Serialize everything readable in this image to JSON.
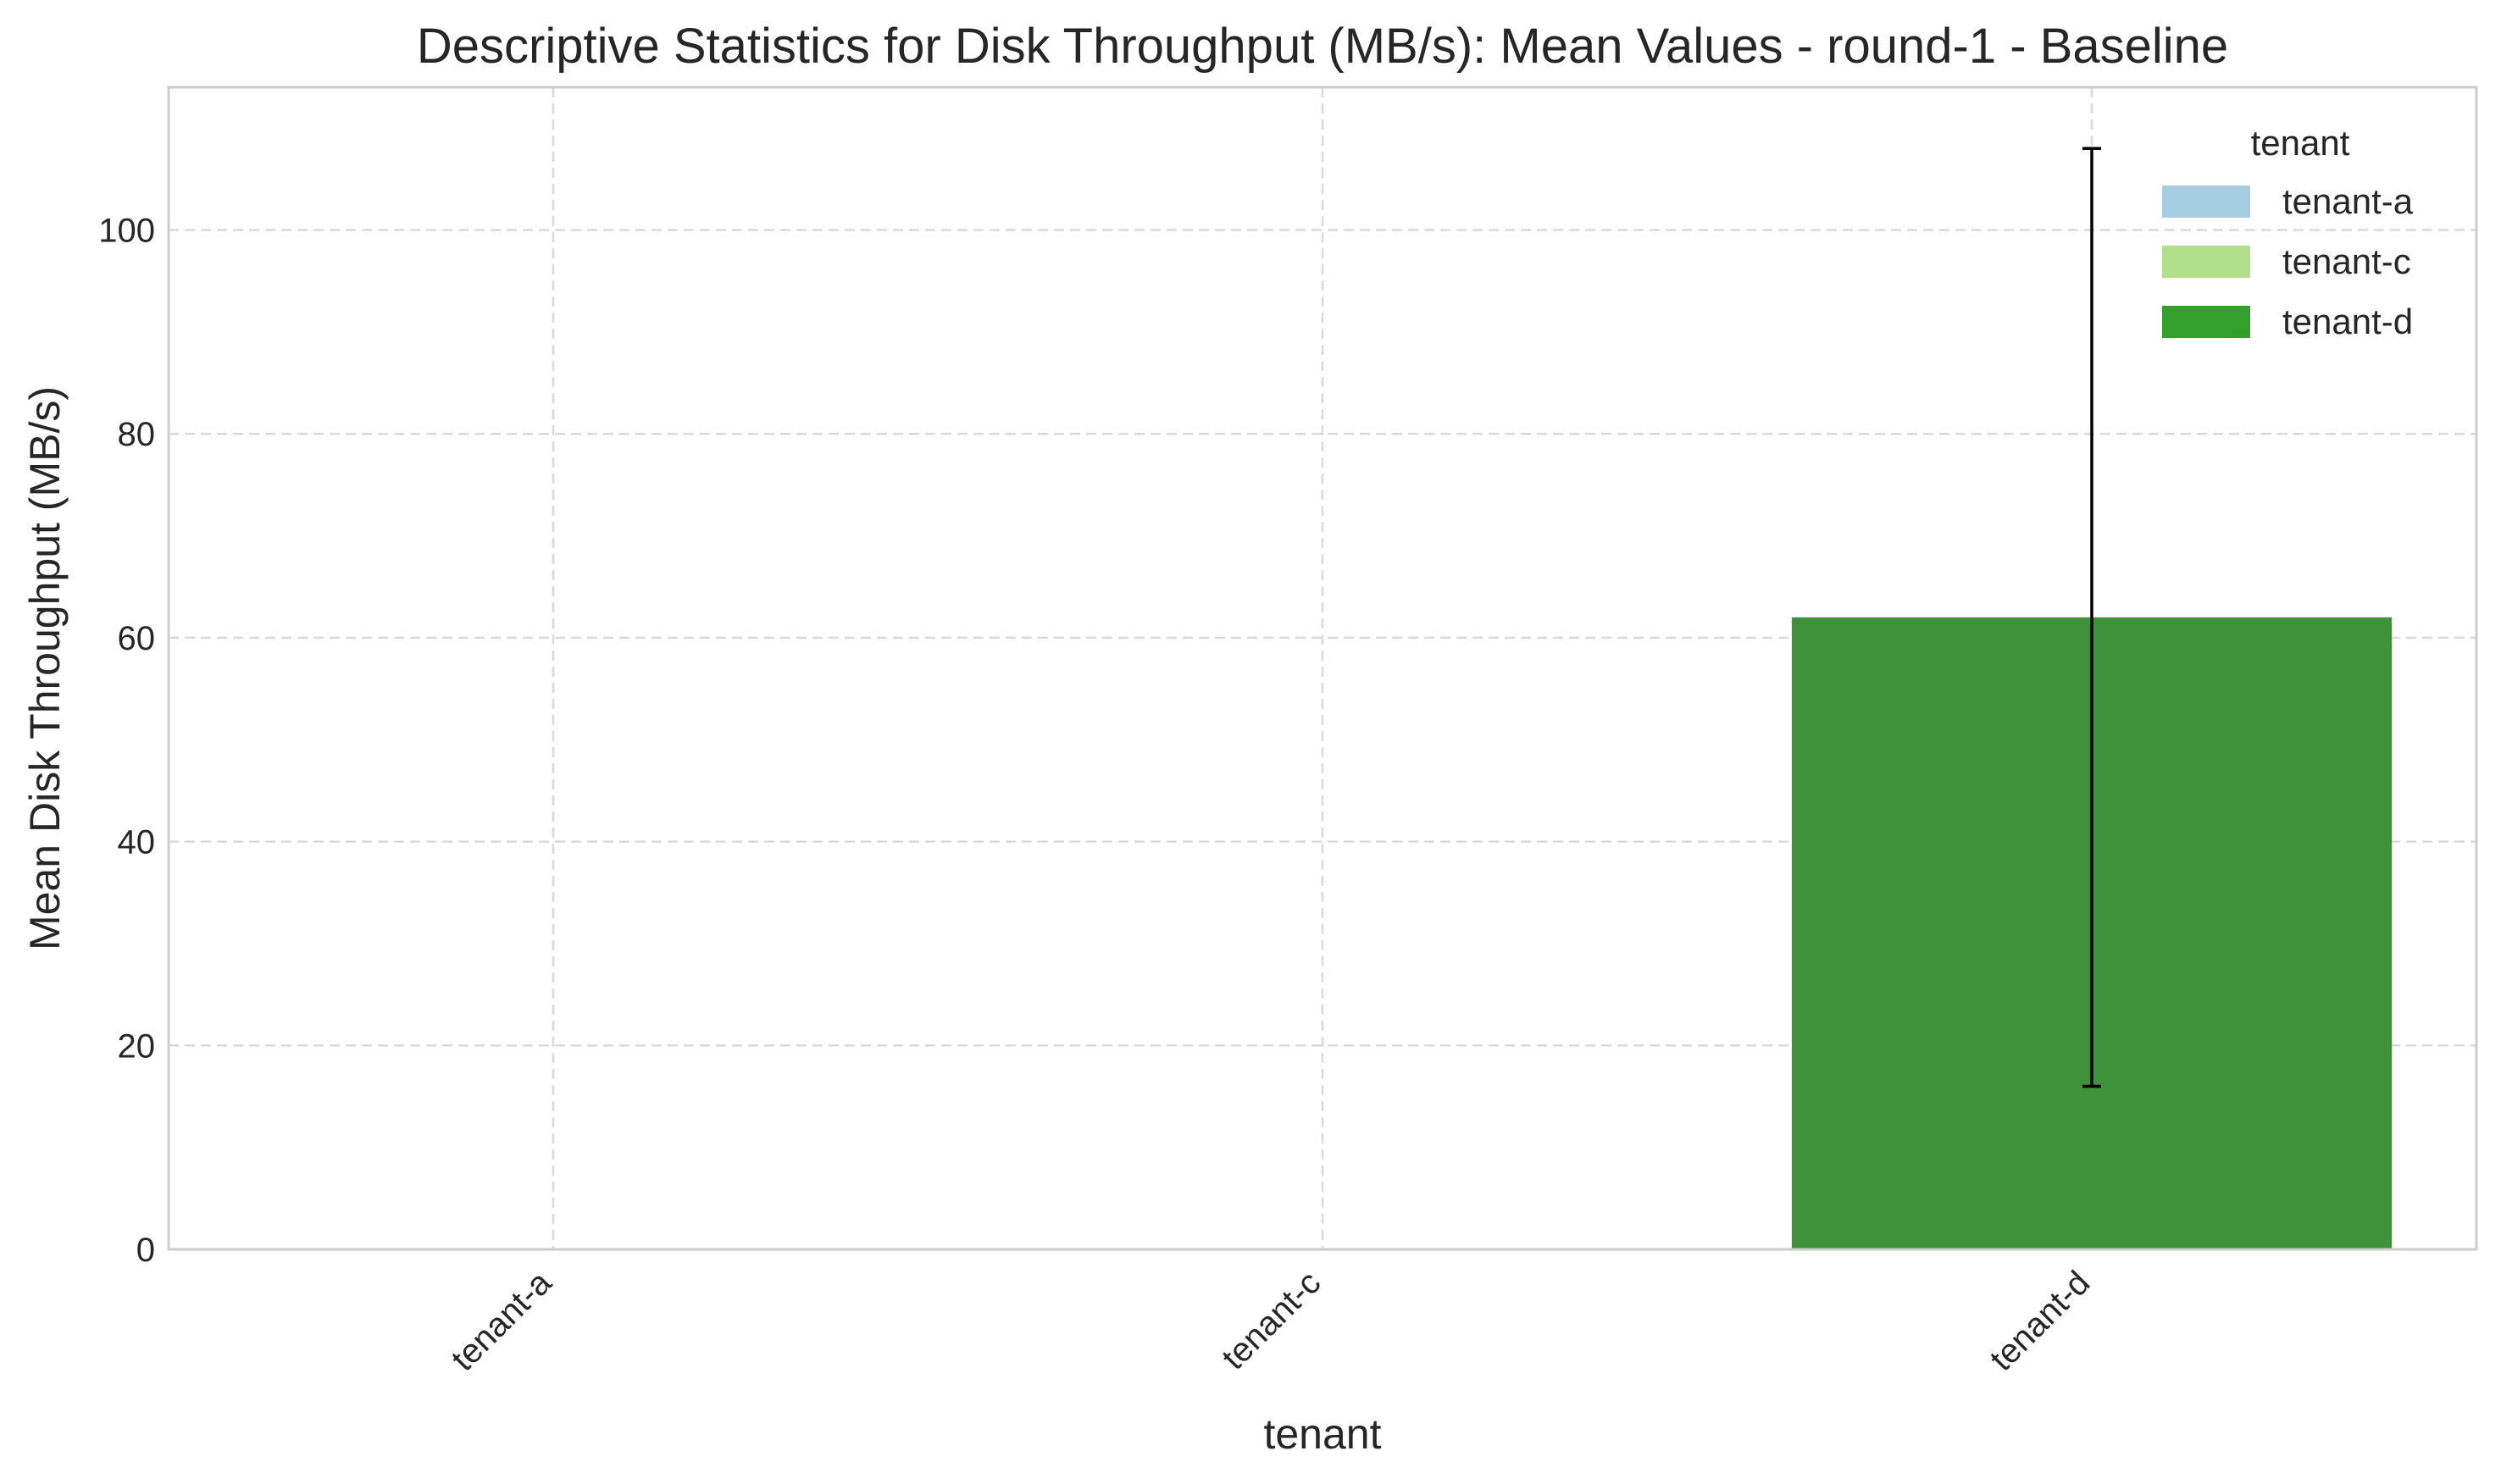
{
  "chart_data": {
    "type": "bar",
    "title": "Descriptive Statistics for Disk Throughput (MB/s): Mean Values - round-1 - Baseline",
    "xlabel": "tenant",
    "ylabel": "Mean Disk Throughput (MB/s)",
    "ylim": [
      0,
      114
    ],
    "yticks": [
      0,
      20,
      40,
      60,
      80,
      100
    ],
    "grid": true,
    "categories": [
      "tenant-a",
      "tenant-c",
      "tenant-d"
    ],
    "values": [
      0,
      0,
      62
    ],
    "error_low": [
      0,
      0,
      16
    ],
    "error_high": [
      0,
      0,
      108
    ],
    "colors": [
      "#a6cee3",
      "#b2df8a",
      "#33a02c"
    ],
    "bar_color": "#3f913a",
    "legend": {
      "title": "tenant",
      "position": "top-right",
      "entries": [
        {
          "label": "tenant-a",
          "color": "#a6cee3"
        },
        {
          "label": "tenant-c",
          "color": "#b2df8a"
        },
        {
          "label": "tenant-d",
          "color": "#33a02c"
        }
      ]
    }
  }
}
